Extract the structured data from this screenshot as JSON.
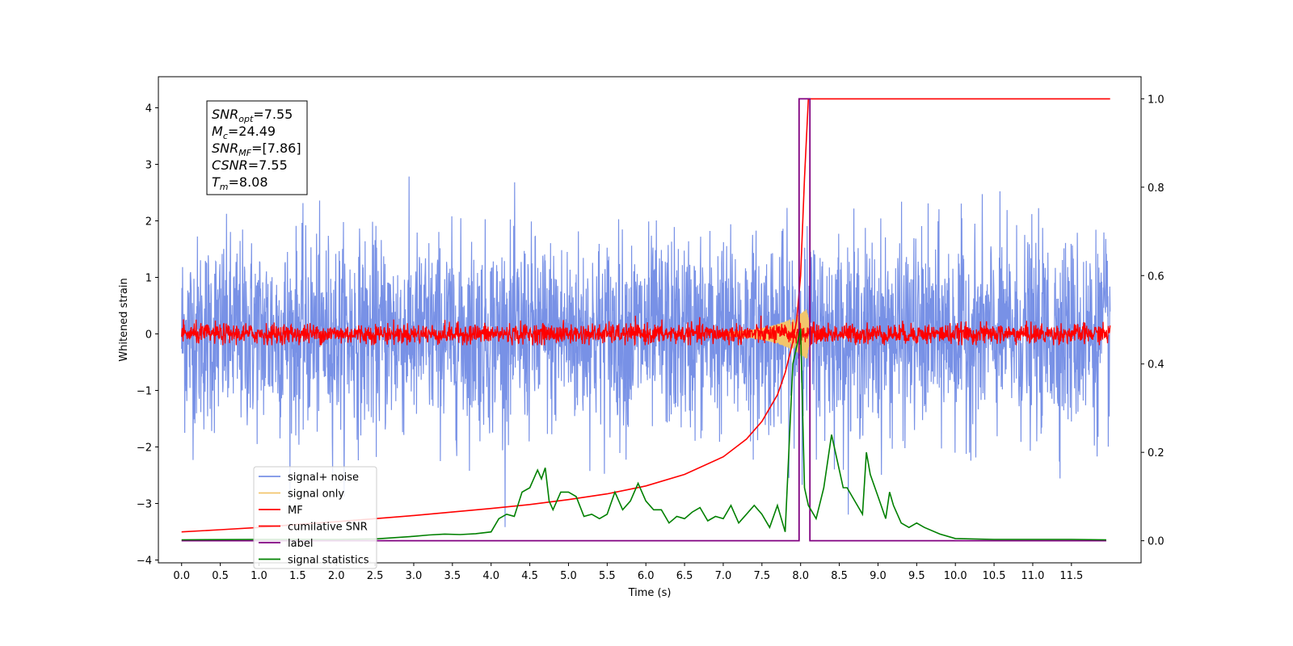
{
  "chart_data": {
    "type": "line",
    "xlabel": "Time (s)",
    "ylabel": "Whitened strain",
    "xlim": [
      -0.3,
      12.4
    ],
    "ylim": [
      -4.05,
      4.55
    ],
    "ylim_right": [
      -0.05,
      1.05
    ],
    "x_ticks": [
      "0.0",
      "0.5",
      "1.0",
      "1.5",
      "2.0",
      "2.5",
      "3.0",
      "3.5",
      "4.0",
      "4.5",
      "5.0",
      "5.5",
      "6.0",
      "6.5",
      "7.0",
      "7.5",
      "8.0",
      "8.5",
      "9.0",
      "9.5",
      "10.0",
      "10.5",
      "11.0",
      "11.5"
    ],
    "y_ticks_left": [
      "−4",
      "−3",
      "−2",
      "−1",
      "0",
      "1",
      "2",
      "3",
      "4"
    ],
    "y_ticks_right": [
      "0.0",
      "0.2",
      "0.4",
      "0.6",
      "0.8",
      "1.0"
    ],
    "grid": false,
    "legend_position": "lower-left",
    "annotation": {
      "lines": [
        {
          "main": "SNR",
          "sub": "opt",
          "value": "=7.55"
        },
        {
          "main": "M",
          "sub": "c",
          "value": "=24.49"
        },
        {
          "main": "SNR",
          "sub": "MF",
          "value": "=[7.86]"
        },
        {
          "main": "CSNR",
          "sub": "",
          "value": "=7.55"
        },
        {
          "main": "T",
          "sub": "m",
          "value": "=8.08"
        }
      ]
    },
    "colors": {
      "signal_noise": "#7891e6",
      "signal_only": "#f2c56b",
      "mf": "#ff0000",
      "cumulative_snr": "#ff0000",
      "label": "#800080",
      "signal_statistics": "#008000"
    },
    "series": [
      {
        "name": "signal+ noise",
        "axis": "left",
        "kind": "noise",
        "t_range": [
          0.0,
          12.0
        ],
        "std": 0.85,
        "range": [
          -3.7,
          4.2
        ]
      },
      {
        "name": "signal only",
        "axis": "left",
        "kind": "chirp",
        "merger_time": 8.08,
        "peak_amplitude": 0.45
      },
      {
        "name": "MF",
        "axis": "left",
        "kind": "noise",
        "t_range": [
          0.0,
          12.0
        ],
        "std": 0.09,
        "range": [
          -0.2,
          0.45
        ]
      },
      {
        "name": "cumilative SNR",
        "axis": "right",
        "x": [
          0.0,
          0.5,
          1.0,
          1.5,
          2.0,
          2.5,
          3.0,
          3.5,
          4.0,
          4.5,
          5.0,
          5.5,
          6.0,
          6.5,
          7.0,
          7.3,
          7.5,
          7.7,
          7.8,
          7.9,
          7.95,
          8.0,
          8.05,
          8.1,
          9.0,
          10.0,
          11.0,
          12.0
        ],
        "values": [
          0.02,
          0.025,
          0.03,
          0.037,
          0.043,
          0.05,
          0.057,
          0.065,
          0.073,
          0.082,
          0.093,
          0.106,
          0.124,
          0.15,
          0.19,
          0.23,
          0.27,
          0.33,
          0.38,
          0.45,
          0.5,
          0.6,
          0.82,
          1.0,
          1.0,
          1.0,
          1.0,
          1.0
        ]
      },
      {
        "name": "label",
        "axis": "right",
        "x": [
          0.0,
          7.98,
          7.98,
          8.12,
          8.12,
          11.95
        ],
        "values": [
          0.0,
          0.0,
          1.0,
          1.0,
          0.0,
          0.0
        ]
      },
      {
        "name": "signal statistics",
        "axis": "right",
        "x": [
          0.0,
          1.0,
          2.0,
          2.5,
          3.0,
          3.2,
          3.4,
          3.6,
          3.8,
          4.0,
          4.1,
          4.2,
          4.3,
          4.4,
          4.5,
          4.6,
          4.65,
          4.7,
          4.75,
          4.8,
          4.9,
          5.0,
          5.1,
          5.2,
          5.3,
          5.4,
          5.5,
          5.6,
          5.7,
          5.8,
          5.9,
          6.0,
          6.1,
          6.2,
          6.3,
          6.4,
          6.5,
          6.6,
          6.7,
          6.8,
          6.9,
          7.0,
          7.1,
          7.2,
          7.3,
          7.4,
          7.5,
          7.6,
          7.7,
          7.8,
          7.9,
          8.0,
          8.05,
          8.1,
          8.2,
          8.3,
          8.4,
          8.5,
          8.55,
          8.6,
          8.7,
          8.8,
          8.85,
          8.9,
          9.0,
          9.1,
          9.15,
          9.2,
          9.3,
          9.4,
          9.5,
          9.6,
          9.8,
          10.0,
          10.5,
          11.0,
          11.5,
          11.95
        ],
        "values": [
          0.002,
          0.003,
          0.003,
          0.004,
          0.01,
          0.013,
          0.015,
          0.014,
          0.016,
          0.02,
          0.05,
          0.06,
          0.055,
          0.11,
          0.12,
          0.16,
          0.14,
          0.165,
          0.09,
          0.07,
          0.11,
          0.11,
          0.1,
          0.055,
          0.06,
          0.05,
          0.06,
          0.11,
          0.07,
          0.09,
          0.13,
          0.09,
          0.07,
          0.07,
          0.04,
          0.055,
          0.05,
          0.065,
          0.075,
          0.045,
          0.055,
          0.05,
          0.08,
          0.04,
          0.06,
          0.08,
          0.06,
          0.03,
          0.08,
          0.02,
          0.4,
          0.48,
          0.12,
          0.08,
          0.05,
          0.12,
          0.24,
          0.16,
          0.12,
          0.12,
          0.09,
          0.06,
          0.2,
          0.15,
          0.1,
          0.05,
          0.11,
          0.08,
          0.04,
          0.03,
          0.04,
          0.03,
          0.015,
          0.005,
          0.003,
          0.003,
          0.003,
          0.002
        ]
      }
    ]
  }
}
